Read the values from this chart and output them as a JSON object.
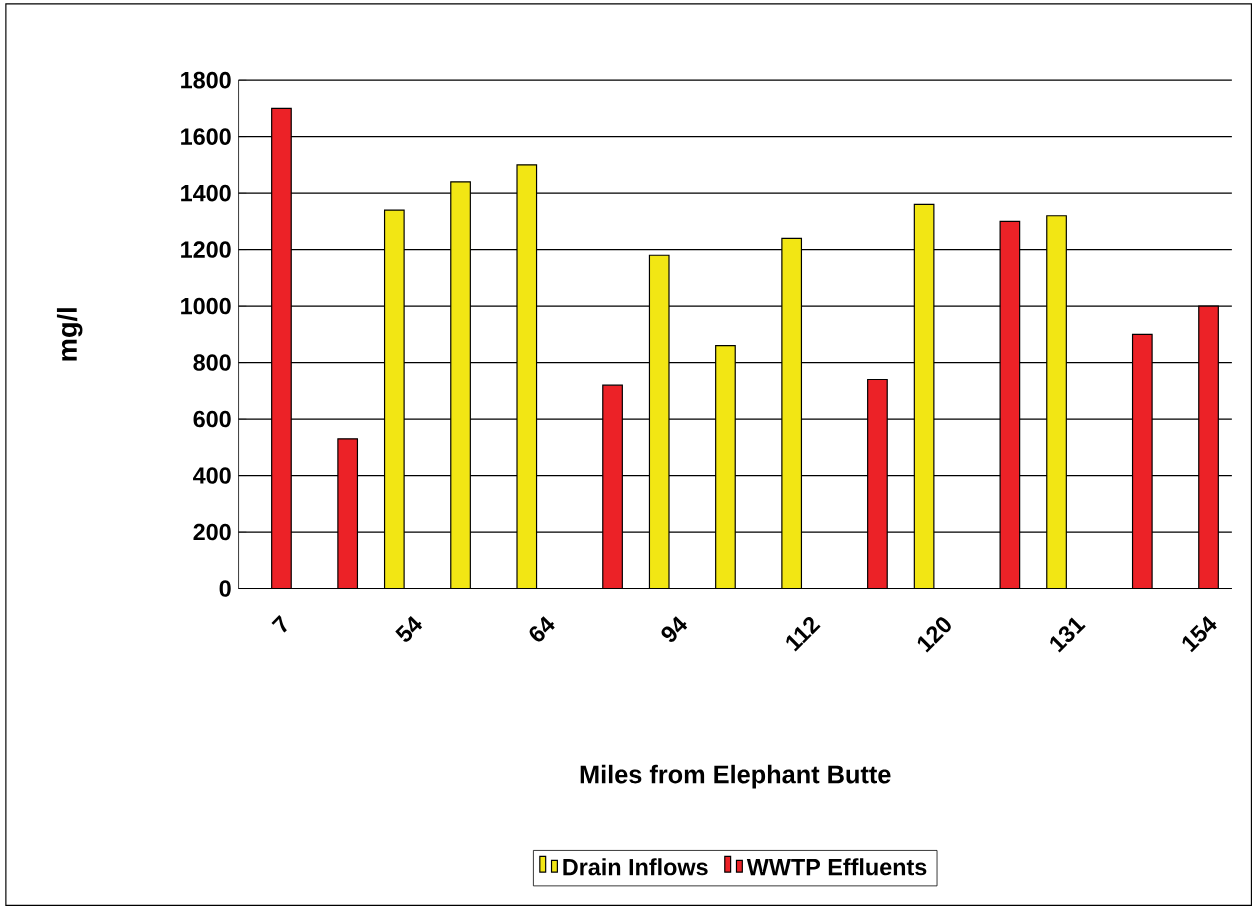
{
  "chart_data": {
    "type": "bar",
    "xlabel": "Miles from Elephant Butte",
    "ylabel": "mg/l",
    "categories": [
      "7",
      null,
      "54",
      null,
      "64",
      null,
      "94",
      null,
      "112",
      null,
      "120",
      null,
      "131",
      null,
      "154"
    ],
    "series": [
      {
        "name": "Drain Inflows",
        "color": "#f2e614",
        "values": [
          null,
          null,
          1340,
          1440,
          1500,
          null,
          1180,
          860,
          1240,
          null,
          1360,
          null,
          1320,
          null,
          null
        ]
      },
      {
        "name": "WWTP Effluents",
        "color": "#ec2227",
        "values": [
          1700,
          530,
          null,
          null,
          null,
          720,
          null,
          null,
          null,
          740,
          null,
          1300,
          null,
          900,
          1000
        ]
      }
    ],
    "ylim": [
      0,
      1800
    ],
    "yticks": [
      0,
      200,
      400,
      600,
      800,
      1000,
      1200,
      1400,
      1600,
      1800
    ],
    "grid": "y",
    "legend": "bottom"
  }
}
